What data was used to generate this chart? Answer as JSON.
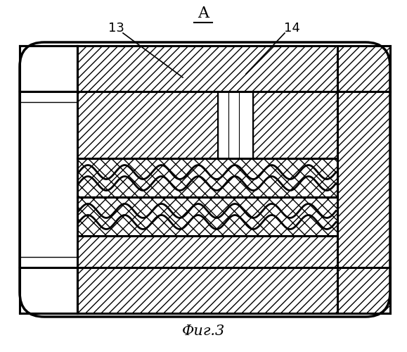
{
  "title_A": "A",
  "label_13": "13",
  "label_14": "14",
  "caption": "Фиг.3",
  "bg_color": "#ffffff",
  "line_color": "#000000",
  "fig_width": 5.79,
  "fig_height": 5.0
}
